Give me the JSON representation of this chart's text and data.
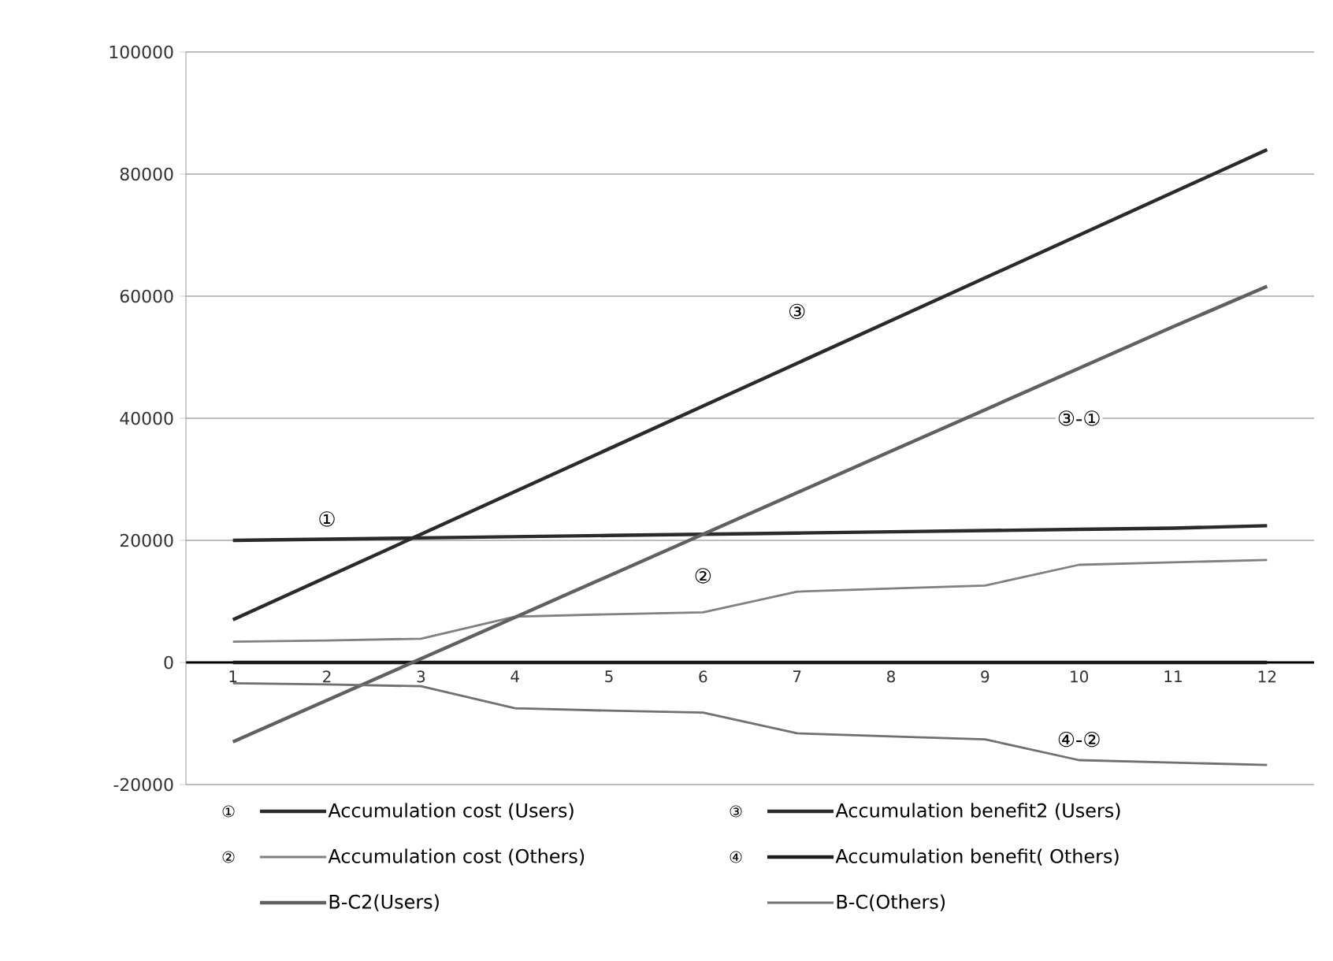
{
  "chart_data": {
    "type": "line",
    "categories": [
      "1",
      "2",
      "3",
      "4",
      "5",
      "6",
      "7",
      "8",
      "9",
      "10",
      "11",
      "12"
    ],
    "ylim": [
      -20000,
      100000
    ],
    "yticks": [
      -20000,
      {
        "value": 0,
        "label": "0"
      },
      20000,
      40000,
      60000,
      80000,
      100000
    ],
    "grid": "y",
    "legend": "bottom",
    "marker": "none",
    "line_style": "solid",
    "series": [
      {
        "name": "Accumulation cost (Users)",
        "color": "#2a2a2a",
        "values": [
          20000,
          20200,
          20400,
          20600,
          20800,
          21000,
          21200,
          21400,
          21600,
          21800,
          22000,
          22400
        ]
      },
      {
        "name": "Accumulation benefit2 (Users)",
        "color": "#2a2a2a",
        "values": [
          7000,
          14000,
          21000,
          28000,
          35000,
          42000,
          49000,
          56000,
          63000,
          70000,
          77000,
          84000
        ]
      },
      {
        "name": "Accumulation cost (Others)",
        "color": "#808080",
        "values": [
          3400,
          3600,
          3900,
          7500,
          7900,
          8200,
          11600,
          12100,
          12600,
          16000,
          16400,
          16800
        ]
      },
      {
        "name": "Accumulation benefit( Others)",
        "color": "#1a1a1a",
        "values": [
          0,
          0,
          0,
          0,
          0,
          0,
          0,
          0,
          0,
          0,
          0,
          0
        ]
      },
      {
        "name": "B-C2(Users)",
        "color": "#606060",
        "values": [
          -13000,
          -6200,
          600,
          7400,
          14200,
          21000,
          27800,
          34600,
          41400,
          48200,
          55000,
          61600
        ]
      },
      {
        "name": "B-C(Others)",
        "color": "#707070",
        "values": [
          -3400,
          -3600,
          -3900,
          -7500,
          -7900,
          -8200,
          -11600,
          -12100,
          -12600,
          -16000,
          -16400,
          -16800
        ]
      }
    ],
    "annotations": [
      {
        "text": "①",
        "x": "2",
        "y": 23500
      },
      {
        "text": "③",
        "x": "7",
        "y": 57500
      },
      {
        "text": "③-①",
        "x": "10",
        "y": 40000
      },
      {
        "text": "②",
        "x": "6",
        "y": 14200
      },
      {
        "text": "④-②",
        "x": "10",
        "y": -12600
      },
      "①",
      "③",
      "②",
      "④"
    ]
  }
}
